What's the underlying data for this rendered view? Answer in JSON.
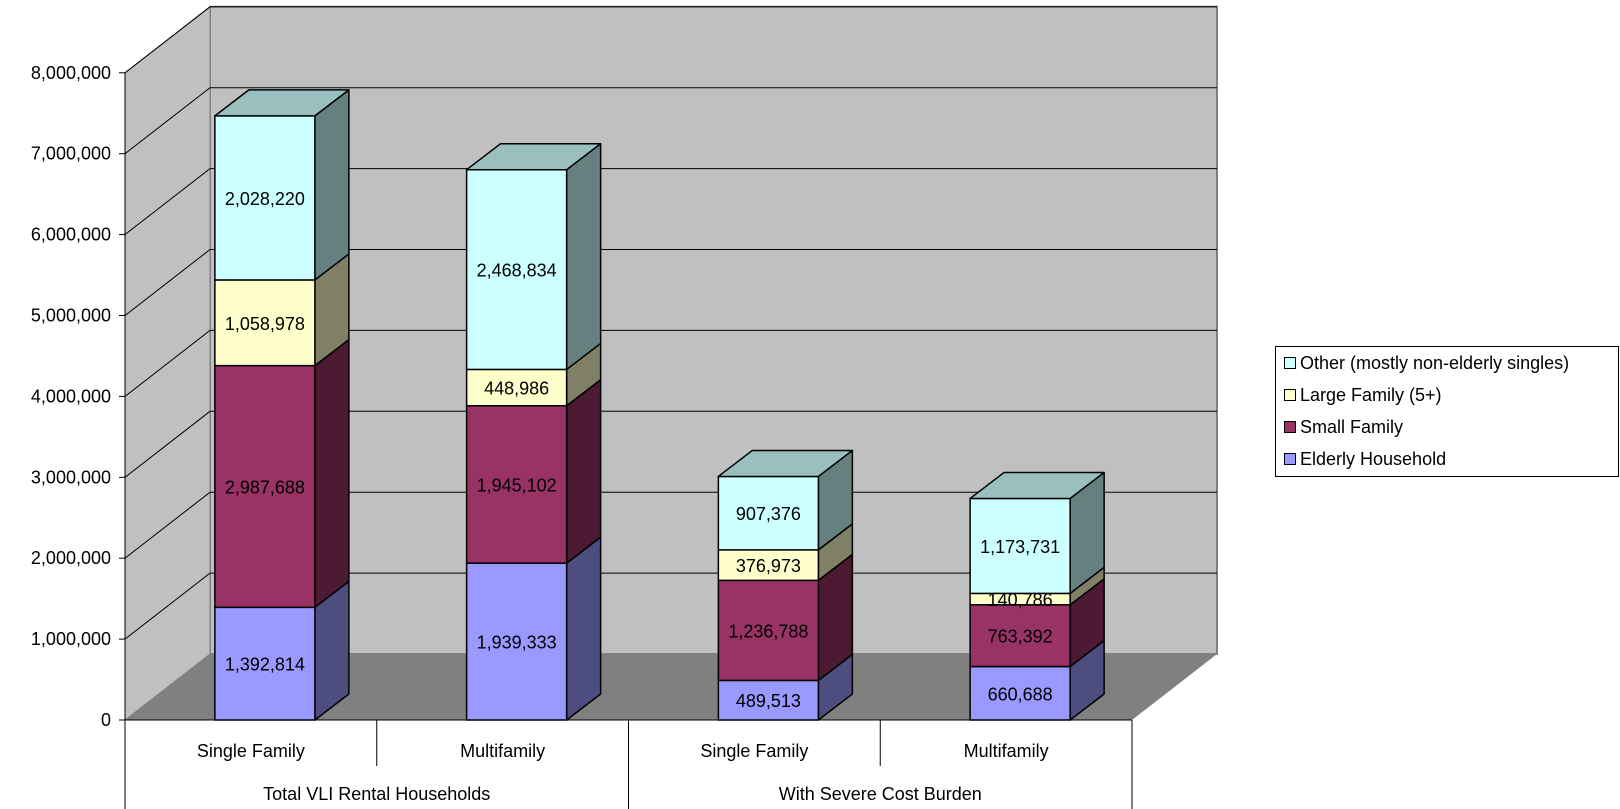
{
  "chart_data": {
    "type": "bar",
    "stacked": true,
    "three_d": true,
    "categories": [
      "Single Family",
      "Multifamily",
      "Single Family",
      "Multifamily"
    ],
    "groups": [
      {
        "label": "Total VLI Rental Households",
        "categories": [
          "Single Family",
          "Multifamily"
        ]
      },
      {
        "label": "With Severe Cost Burden",
        "categories": [
          "Single Family",
          "Multifamily"
        ]
      }
    ],
    "series": [
      {
        "name": "Elderly Household",
        "color": "#9999ff",
        "values": [
          1392814,
          1939333,
          489513,
          660688
        ],
        "labels": [
          "1,392,814",
          "1,939,333",
          "489,513",
          "660,688"
        ]
      },
      {
        "name": "Small Family",
        "color": "#993366",
        "values": [
          2987688,
          1945102,
          1236788,
          763392
        ],
        "labels": [
          "2,987,688",
          "1,945,102",
          "1,236,788",
          "763,392"
        ]
      },
      {
        "name": "Large Family (5+)",
        "color": "#ffffcc",
        "values": [
          1058978,
          448986,
          376973,
          140786
        ],
        "labels": [
          "1,058,978",
          "448,986",
          "376,973",
          "140,786"
        ]
      },
      {
        "name": "Other (mostly non-elderly singles)",
        "color": "#ccffff",
        "values": [
          2028220,
          2468834,
          907376,
          1173731
        ],
        "labels": [
          "2,028,220",
          "2,468,834",
          "907,376",
          "1,173,731"
        ]
      }
    ],
    "ylim": [
      0,
      8000000
    ],
    "yticks": [
      "0",
      "1,000,000",
      "2,000,000",
      "3,000,000",
      "4,000,000",
      "5,000,000",
      "6,000,000",
      "7,000,000",
      "8,000,000"
    ],
    "grid": true,
    "legend": "right",
    "title": "",
    "xlabel": "",
    "ylabel": "",
    "wall_color": "#c0c0c0",
    "floor_color": "#808080"
  },
  "legend": {
    "items": [
      {
        "label": "Other (mostly non-elderly singles)",
        "color": "#ccffff"
      },
      {
        "label": "Large Family (5+)",
        "color": "#ffffcc"
      },
      {
        "label": "Small Family",
        "color": "#993366"
      },
      {
        "label": "Elderly Household",
        "color": "#9999ff"
      }
    ]
  }
}
